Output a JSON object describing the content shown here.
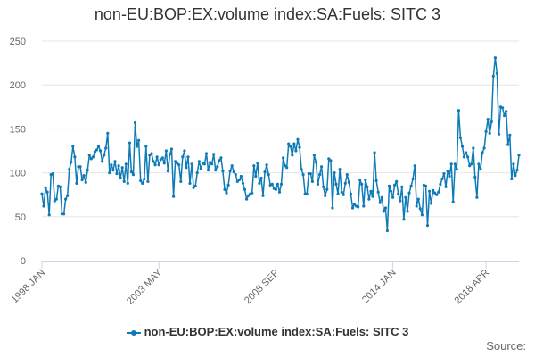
{
  "chart_data": {
    "type": "line",
    "title": "non-EU:BOP:EX:volume index:SA:Fuels: SITC 3",
    "xlabel": "",
    "ylabel": "",
    "x_tick_labels": [
      "1998 JAN",
      "2003 MAY",
      "2008 SEP",
      "2014 JAN",
      "2018 APR"
    ],
    "y_ticks": [
      0,
      50,
      100,
      150,
      200,
      250
    ],
    "ylim": [
      0,
      250
    ],
    "grid": "horizontal",
    "legend_position": "bottom",
    "source_label": "Source:",
    "series": [
      {
        "name": "non-EU:BOP:EX:volume index:SA:Fuels: SITC 3",
        "color": "#0e7ab6",
        "monthly_start": "1998 JAN",
        "values": [
          76,
          62,
          83,
          78,
          52,
          98,
          99,
          68,
          70,
          85,
          84,
          53,
          53,
          70,
          74,
          104,
          112,
          130,
          118,
          88,
          107,
          107,
          92,
          97,
          89,
          103,
          120,
          116,
          118,
          124,
          126,
          130,
          125,
          113,
          120,
          128,
          145,
          100,
          109,
          103,
          113,
          99,
          108,
          94,
          106,
          90,
          110,
          88,
          134,
          101,
          98,
          157,
          130,
          137,
          91,
          88,
          93,
          130,
          90,
          120,
          122,
          113,
          109,
          118,
          109,
          115,
          117,
          111,
          125,
          102,
          121,
          127,
          73,
          113,
          111,
          109,
          90,
          118,
          125,
          106,
          118,
          88,
          110,
          83,
          85,
          100,
          113,
          105,
          111,
          110,
          122,
          103,
          112,
          110,
          121,
          103,
          107,
          114,
          117,
          102,
          81,
          77,
          86,
          102,
          108,
          101,
          98,
          90,
          92,
          96,
          88,
          81,
          70,
          74,
          76,
          77,
          108,
          96,
          111,
          88,
          94,
          74,
          101,
          109,
          98,
          86,
          87,
          82,
          81,
          87,
          78,
          87,
          117,
          108,
          106,
          133,
          130,
          120,
          133,
          125,
          138,
          129,
          104,
          98,
          76,
          76,
          99,
          99,
          90,
          120,
          112,
          87,
          98,
          107,
          84,
          74,
          81,
          116,
          114,
          60,
          100,
          87,
          76,
          104,
          78,
          75,
          88,
          98,
          89,
          76,
          60,
          64,
          62,
          61,
          92,
          87,
          62,
          92,
          84,
          70,
          79,
          73,
          123,
          91,
          78,
          66,
          72,
          56,
          60,
          34,
          85,
          79,
          72,
          86,
          90,
          76,
          68,
          84,
          47,
          72,
          56,
          77,
          85,
          93,
          108,
          62,
          70,
          59,
          52,
          86,
          85,
          40,
          79,
          65,
          80,
          77,
          75,
          78,
          87,
          93,
          99,
          84,
          102,
          96,
          110,
          67,
          110,
          104,
          171,
          140,
          130,
          118,
          123,
          118,
          108,
          110,
          128,
          95,
          72,
          110,
          104,
          123,
          128,
          147,
          161,
          145,
          158,
          210,
          231,
          213,
          144,
          175,
          174,
          165,
          170,
          132,
          143,
          93,
          110,
          97,
          103,
          120
        ]
      }
    ]
  }
}
